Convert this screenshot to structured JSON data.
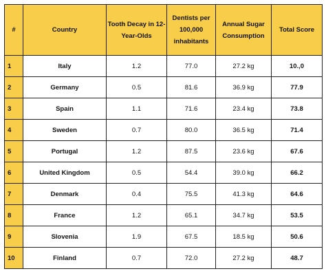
{
  "table": {
    "headers": [
      "#",
      "Country",
      "Tooth Decay in 12-Year-Olds",
      "Dentists per 100,000 inhabitants",
      "Annual Sugar Consumption",
      "Total Score"
    ],
    "rows": [
      [
        "1",
        "Italy",
        "1.2",
        "77.0",
        "27.2 kg",
        "10.,0"
      ],
      [
        "2",
        "Germany",
        "0.5",
        "81.6",
        "36.9 kg",
        "77.9"
      ],
      [
        "3",
        "Spain",
        "1.1",
        "71.6",
        "23.4 kg",
        "73.8"
      ],
      [
        "4",
        "Sweden",
        "0.7",
        "80.0",
        "36.5 kg",
        "71.4"
      ],
      [
        "5",
        "Portugal",
        "1.2",
        "87.5",
        "23.6 kg",
        "67.6"
      ],
      [
        "6",
        "United Kingdom",
        "0.5",
        "54.4",
        "39.0 kg",
        "66.2"
      ],
      [
        "7",
        "Denmark",
        "0.4",
        "75.5",
        "41.3 kg",
        "64.6"
      ],
      [
        "8",
        "France",
        "1.2",
        "65.1",
        "34.7 kg",
        "53.5"
      ],
      [
        "9",
        "Slovenia",
        "1.9",
        "67.5",
        "18.5 kg",
        "50.6"
      ],
      [
        "10",
        "Finland",
        "0.7",
        "72.0",
        "27.2 kg",
        "48.7"
      ]
    ]
  },
  "colors": {
    "header_fill": "#f8cd4a",
    "border": "#222222"
  }
}
